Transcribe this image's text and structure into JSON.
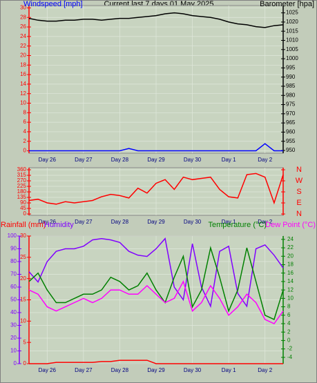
{
  "chart_data": [
    {
      "type": "line",
      "title": "Current last 7 days 01 May 2025",
      "x": [
        0,
        0.25,
        0.5,
        0.75,
        1,
        1.25,
        1.5,
        1.75,
        2,
        2.25,
        2.5,
        2.75,
        3,
        3.25,
        3.5,
        3.75,
        4,
        4.25,
        4.5,
        4.75,
        5,
        5.25,
        5.5,
        5.75,
        6,
        6.25,
        6.5,
        6.75,
        7
      ],
      "xlim": [
        0,
        7
      ],
      "xticks": [
        {
          "value": 0.5,
          "label": "Day 26"
        },
        {
          "value": 1.5,
          "label": "Day 27"
        },
        {
          "value": 2.5,
          "label": "Day 28"
        },
        {
          "value": 3.5,
          "label": "Day 29"
        },
        {
          "value": 4.5,
          "label": "Day 30"
        },
        {
          "value": 5.5,
          "label": "Day 1"
        },
        {
          "value": 6.5,
          "label": "Day 2"
        }
      ],
      "ylim": [
        -0.5,
        30.5
      ],
      "yticks": [
        0,
        2,
        4,
        6,
        8,
        10,
        12,
        14,
        16,
        18,
        20,
        22,
        24,
        26,
        28,
        30
      ],
      "y2lim": [
        948.5,
        1029
      ],
      "y2ticks": [
        950,
        955,
        960,
        965,
        970,
        975,
        980,
        985,
        990,
        995,
        1000,
        1005,
        1010,
        1015,
        1020,
        1025
      ],
      "axis_colors": {
        "y": "#ff0000",
        "y2": "#000000"
      },
      "grid": true,
      "series": [
        {
          "name": "Windspeed [mph]",
          "color": "#0000ff",
          "axis": "y",
          "values": [
            0,
            0,
            0,
            0,
            0,
            0,
            0,
            0,
            0,
            0,
            0,
            0.5,
            0,
            0,
            0,
            0,
            0,
            0,
            0,
            0,
            0,
            0,
            0,
            0,
            0,
            0,
            1.5,
            0,
            0
          ]
        },
        {
          "name": "Barometer [hpa]",
          "color": "#000000",
          "axis": "y2",
          "values": [
            1022,
            1021,
            1020.5,
            1020.5,
            1021,
            1021,
            1021.5,
            1021.5,
            1021,
            1021.5,
            1022,
            1022,
            1022.5,
            1023,
            1023.5,
            1024.5,
            1025,
            1024.5,
            1023.5,
            1023,
            1022.5,
            1021.5,
            1020,
            1019,
            1018.5,
            1017.5,
            1017,
            1018,
            1018.5
          ]
        }
      ]
    },
    {
      "type": "line",
      "x": [
        0,
        0.25,
        0.5,
        0.75,
        1,
        1.25,
        1.5,
        1.75,
        2,
        2.25,
        2.5,
        2.75,
        3,
        3.25,
        3.5,
        3.75,
        4,
        4.25,
        4.5,
        4.75,
        5,
        5.25,
        5.5,
        5.75,
        6,
        6.25,
        6.5,
        6.75,
        7
      ],
      "xlim": [
        0,
        7
      ],
      "xticks": [
        {
          "value": 0.5,
          "label": "Day 26"
        },
        {
          "value": 1.5,
          "label": "Day 27"
        },
        {
          "value": 2.5,
          "label": "Day 28"
        },
        {
          "value": 3.5,
          "label": "Day 29"
        },
        {
          "value": 4.5,
          "label": "Day 30"
        },
        {
          "value": 5.5,
          "label": "Day 1"
        },
        {
          "value": 6.5,
          "label": "Day 2"
        }
      ],
      "ylim": [
        -11,
        377
      ],
      "yticks": [
        0,
        45,
        90,
        135,
        180,
        225,
        270,
        315,
        360
      ],
      "y2lim": [
        -11,
        377
      ],
      "y2ticks": [
        {
          "value": 0,
          "label": "N"
        },
        {
          "value": 90,
          "label": "E"
        },
        {
          "value": 180,
          "label": "S"
        },
        {
          "value": 270,
          "label": "W"
        },
        {
          "value": 360,
          "label": "N"
        }
      ],
      "axis_colors": {
        "y": "#ff0000",
        "y2": "#ff0000"
      },
      "grid": true,
      "series": [
        {
          "color": "#ff0000",
          "axis": "y",
          "values": [
            110,
            120,
            90,
            80,
            100,
            90,
            100,
            110,
            140,
            160,
            150,
            130,
            210,
            170,
            250,
            280,
            200,
            300,
            280,
            290,
            300,
            200,
            140,
            130,
            320,
            330,
            300,
            90,
            320
          ]
        }
      ]
    },
    {
      "type": "line",
      "x": [
        0,
        0.25,
        0.5,
        0.75,
        1,
        1.25,
        1.5,
        1.75,
        2,
        2.25,
        2.5,
        2.75,
        3,
        3.25,
        3.5,
        3.75,
        4,
        4.25,
        4.5,
        4.75,
        5,
        5.25,
        5.5,
        5.75,
        6,
        6.25,
        6.5,
        6.75,
        7
      ],
      "xlim": [
        0,
        7
      ],
      "xticks": [
        {
          "value": 0.5,
          "label": "Day 26"
        },
        {
          "value": 1.5,
          "label": "Day 27"
        },
        {
          "value": 2.5,
          "label": "Day 28"
        },
        {
          "value": 3.5,
          "label": "Day 29"
        },
        {
          "value": 4.5,
          "label": "Day 30"
        },
        {
          "value": 5.5,
          "label": "Day 1"
        },
        {
          "value": 6.5,
          "label": "Day 2"
        }
      ],
      "ylim": [
        0,
        100
      ],
      "yticks": [
        0,
        10,
        20,
        30,
        40,
        50,
        60,
        70,
        80,
        90,
        100
      ],
      "y2lim": [
        -5.5,
        24.8
      ],
      "y2ticks": [
        -4,
        -2,
        0,
        2,
        4,
        6,
        8,
        10,
        12,
        14,
        16,
        18,
        20,
        22,
        24
      ],
      "y3lim": [
        0,
        30
      ],
      "y3ticks": [
        0,
        5,
        10,
        15,
        20,
        25,
        30
      ],
      "axis_colors": {
        "y": "#8000ff",
        "y2": "#008000",
        "y3": "#ff0000"
      },
      "grid": true,
      "series": [
        {
          "name": "Rainfall (mm)",
          "color": "#ff0000",
          "axis": "y3",
          "values": [
            0,
            0,
            0,
            0.3,
            0.3,
            0.3,
            0.3,
            0.3,
            0.5,
            0.5,
            0.8,
            0.8,
            0.8,
            0.8,
            0,
            0,
            0,
            0,
            0,
            0,
            0,
            0,
            0,
            0,
            0,
            0,
            0,
            0,
            0
          ]
        },
        {
          "name": "Humidity",
          "color": "#8000ff",
          "axis": "y",
          "values": [
            72,
            64,
            80,
            88,
            90,
            90,
            92,
            97,
            98,
            97,
            95,
            88,
            85,
            84,
            90,
            98,
            60,
            50,
            94,
            60,
            45,
            88,
            92,
            55,
            45,
            90,
            93,
            85,
            75
          ]
        },
        {
          "name": "Temperature (°C)",
          "color": "#008000",
          "axis": "y2",
          "values": [
            14,
            16,
            12,
            9,
            9,
            10,
            11,
            11,
            12,
            15,
            14,
            12,
            13,
            16,
            12,
            9,
            15,
            20,
            8,
            12,
            22,
            15,
            7,
            12,
            22,
            14,
            6,
            5,
            12
          ]
        },
        {
          "name": "Dew Point (°C)",
          "color": "#ff00ff",
          "axis": "y2",
          "values": [
            12,
            11,
            8,
            7,
            8,
            9,
            10,
            9,
            10,
            12,
            12,
            11,
            11,
            13,
            11,
            9,
            10,
            14,
            7,
            9,
            13,
            10,
            6,
            8,
            11,
            9,
            5,
            4,
            7
          ]
        }
      ]
    }
  ]
}
